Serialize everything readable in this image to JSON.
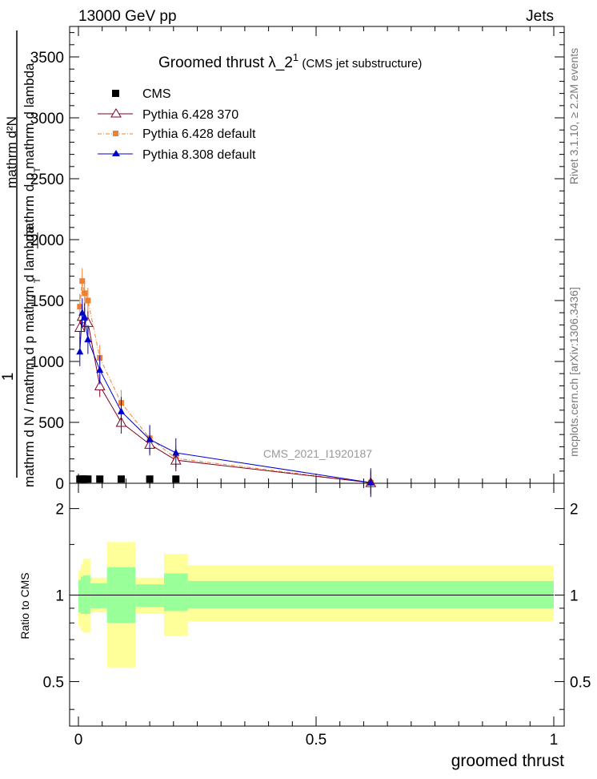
{
  "header": {
    "left": "13000 GeV pp",
    "right": "Jets"
  },
  "side": {
    "rivet": "Rivet 3.1.10, ≥ 2.2M events",
    "mcplots": "mcplots.cern.ch [arXiv:1306.3436]"
  },
  "main": {
    "title_main": "Groomed thrust  λ_2",
    "title_sup": "1",
    "title_paren": " (CMS jet substructure)",
    "analysis_id": "CMS_2021_I1920187",
    "ylabel_one": "1",
    "ylabel_num_line1": "mathrm d²N",
    "ylabel_num_line2": "mathrm d p  mathrm d lambda",
    "ylabel_num_sub": "T",
    "ylabel_den": "mathrm d N / mathrm d p  mathrm d lambda",
    "ylabel_den_sub": "T",
    "y_ticks": [
      "0",
      "500",
      "1000",
      "1500",
      "2000",
      "2500",
      "3000",
      "3500"
    ]
  },
  "ratio": {
    "ylabel": "Ratio to CMS",
    "y_ticks": [
      "0.5",
      "1",
      "2"
    ],
    "x_ticks": [
      "0",
      "0.5",
      "1"
    ],
    "xlabel": "groomed thrust"
  },
  "legend": [
    {
      "label": "CMS",
      "color": "#000000",
      "marker": "square"
    },
    {
      "label": "Pythia 6.428 370",
      "color": "#800020",
      "marker": "open-triangle"
    },
    {
      "label": "Pythia 6.428 default",
      "color": "#f08030",
      "marker": "square"
    },
    {
      "label": "Pythia 8.308 default",
      "color": "#0000cc",
      "marker": "triangle"
    }
  ],
  "chart_data": {
    "type": "line",
    "xlabel": "groomed thrust",
    "xlim": [
      0,
      1
    ],
    "ylim": [
      0,
      3750
    ],
    "ratio_ylim": [
      0.35,
      2.45
    ],
    "series": [
      {
        "name": "CMS",
        "x": [
          0.003,
          0.008,
          0.013,
          0.02,
          0.045,
          0.09,
          0.15,
          0.205
        ],
        "values": [
          5,
          5,
          5,
          5,
          5,
          5,
          5,
          5
        ]
      },
      {
        "name": "Pythia 6.428 370",
        "x": [
          0.003,
          0.008,
          0.013,
          0.02,
          0.045,
          0.09,
          0.15,
          0.205,
          0.615
        ],
        "values": [
          1280,
          1370,
          1350,
          1320,
          800,
          500,
          320,
          190,
          5
        ]
      },
      {
        "name": "Pythia 6.428 default",
        "x": [
          0.003,
          0.008,
          0.013,
          0.02,
          0.045,
          0.09,
          0.15,
          0.205,
          0.615
        ],
        "values": [
          1450,
          1660,
          1560,
          1500,
          1030,
          660,
          370,
          205,
          5
        ]
      },
      {
        "name": "Pythia 8.308 default",
        "x": [
          0.003,
          0.008,
          0.013,
          0.02,
          0.045,
          0.09,
          0.15,
          0.205,
          0.615
        ],
        "values": [
          1080,
          1400,
          1360,
          1180,
          930,
          590,
          360,
          250,
          5
        ]
      }
    ],
    "ratio_bands": [
      {
        "x0": 0.0,
        "x1": 0.005,
        "inner": [
          0.87,
          1.13
        ],
        "outer": [
          0.78,
          1.22
        ]
      },
      {
        "x0": 0.005,
        "x1": 0.01,
        "inner": [
          0.86,
          1.16
        ],
        "outer": [
          0.75,
          1.28
        ]
      },
      {
        "x0": 0.01,
        "x1": 0.025,
        "inner": [
          0.86,
          1.17
        ],
        "outer": [
          0.74,
          1.34
        ]
      },
      {
        "x0": 0.025,
        "x1": 0.06,
        "inner": [
          0.9,
          1.1
        ],
        "outer": [
          0.87,
          1.15
        ]
      },
      {
        "x0": 0.06,
        "x1": 0.12,
        "inner": [
          0.8,
          1.25
        ],
        "outer": [
          0.56,
          1.53
        ]
      },
      {
        "x0": 0.12,
        "x1": 0.18,
        "inner": [
          0.91,
          1.09
        ],
        "outer": [
          0.86,
          1.15
        ]
      },
      {
        "x0": 0.18,
        "x1": 0.23,
        "inner": [
          0.88,
          1.19
        ],
        "outer": [
          0.72,
          1.39
        ]
      },
      {
        "x0": 0.23,
        "x1": 1.0,
        "inner": [
          0.9,
          1.12
        ],
        "outer": [
          0.81,
          1.27
        ]
      }
    ]
  }
}
